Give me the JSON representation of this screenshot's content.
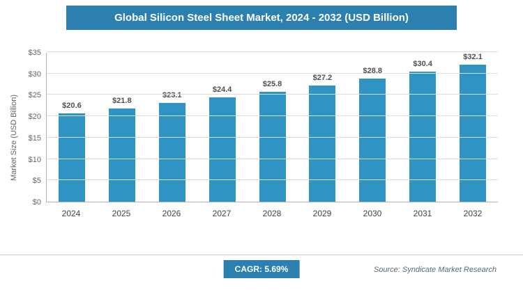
{
  "title": "Global Silicon Steel Sheet Market, 2024 - 2032 (USD Billion)",
  "chart_data": {
    "type": "bar",
    "title": "Global Silicon Steel Sheet Market, 2024 - 2032 (USD Billion)",
    "categories": [
      "2024",
      "2025",
      "2026",
      "2027",
      "2028",
      "2029",
      "2030",
      "2031",
      "2032"
    ],
    "values": [
      20.6,
      21.8,
      23.1,
      24.4,
      25.8,
      27.2,
      28.8,
      30.4,
      32.1
    ],
    "value_labels": [
      "$20.6",
      "$21.8",
      "$23.1",
      "$24.4",
      "$25.8",
      "$27.2",
      "$28.8",
      "$30.4",
      "$32.1"
    ],
    "xlabel": "",
    "ylabel": "Market Size (USD Billion)",
    "ylim": [
      0,
      35
    ],
    "ytick_values": [
      0,
      5,
      10,
      15,
      20,
      25,
      30,
      35
    ],
    "ytick_labels": [
      "$0",
      "$5",
      "$10",
      "$15",
      "$20",
      "$25",
      "$30",
      "$35"
    ],
    "grid": "horizontal",
    "legend": "none"
  },
  "footer": {
    "cagr_label": "CAGR: 5.69%",
    "source": "Source: Syndicate Market Research"
  },
  "colors": {
    "header_bg": "#2C80AF",
    "bar": "#2F93C4",
    "badge_bg": "#2C80AF"
  }
}
